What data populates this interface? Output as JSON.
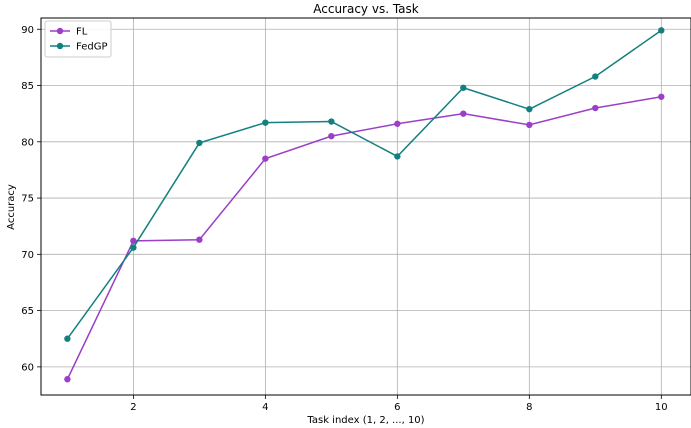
{
  "chart_data": {
    "type": "line",
    "title": "Accuracy vs. Task",
    "xlabel": "Task index (1, 2, ..., 10)",
    "ylabel": "Accuracy",
    "x": [
      1,
      2,
      3,
      4,
      5,
      6,
      7,
      8,
      9,
      10
    ],
    "xticks": [
      "2",
      "4",
      "6",
      "8",
      "10"
    ],
    "yticks": [
      "60",
      "65",
      "70",
      "75",
      "80",
      "85",
      "90"
    ],
    "xlim": [
      0.6,
      10.45
    ],
    "ylim": [
      57.5,
      91
    ],
    "grid": true,
    "legend_position": "top-left",
    "series": [
      {
        "name": "FL",
        "color": "#9b3fc8",
        "marker": "circle",
        "values": [
          58.9,
          71.2,
          71.3,
          78.5,
          80.5,
          81.6,
          82.5,
          81.5,
          83.0,
          84.0
        ]
      },
      {
        "name": "FedGP",
        "color": "#138080",
        "marker": "circle",
        "values": [
          62.5,
          70.6,
          79.9,
          81.7,
          81.8,
          78.7,
          84.8,
          82.9,
          85.8,
          89.9
        ]
      }
    ]
  }
}
